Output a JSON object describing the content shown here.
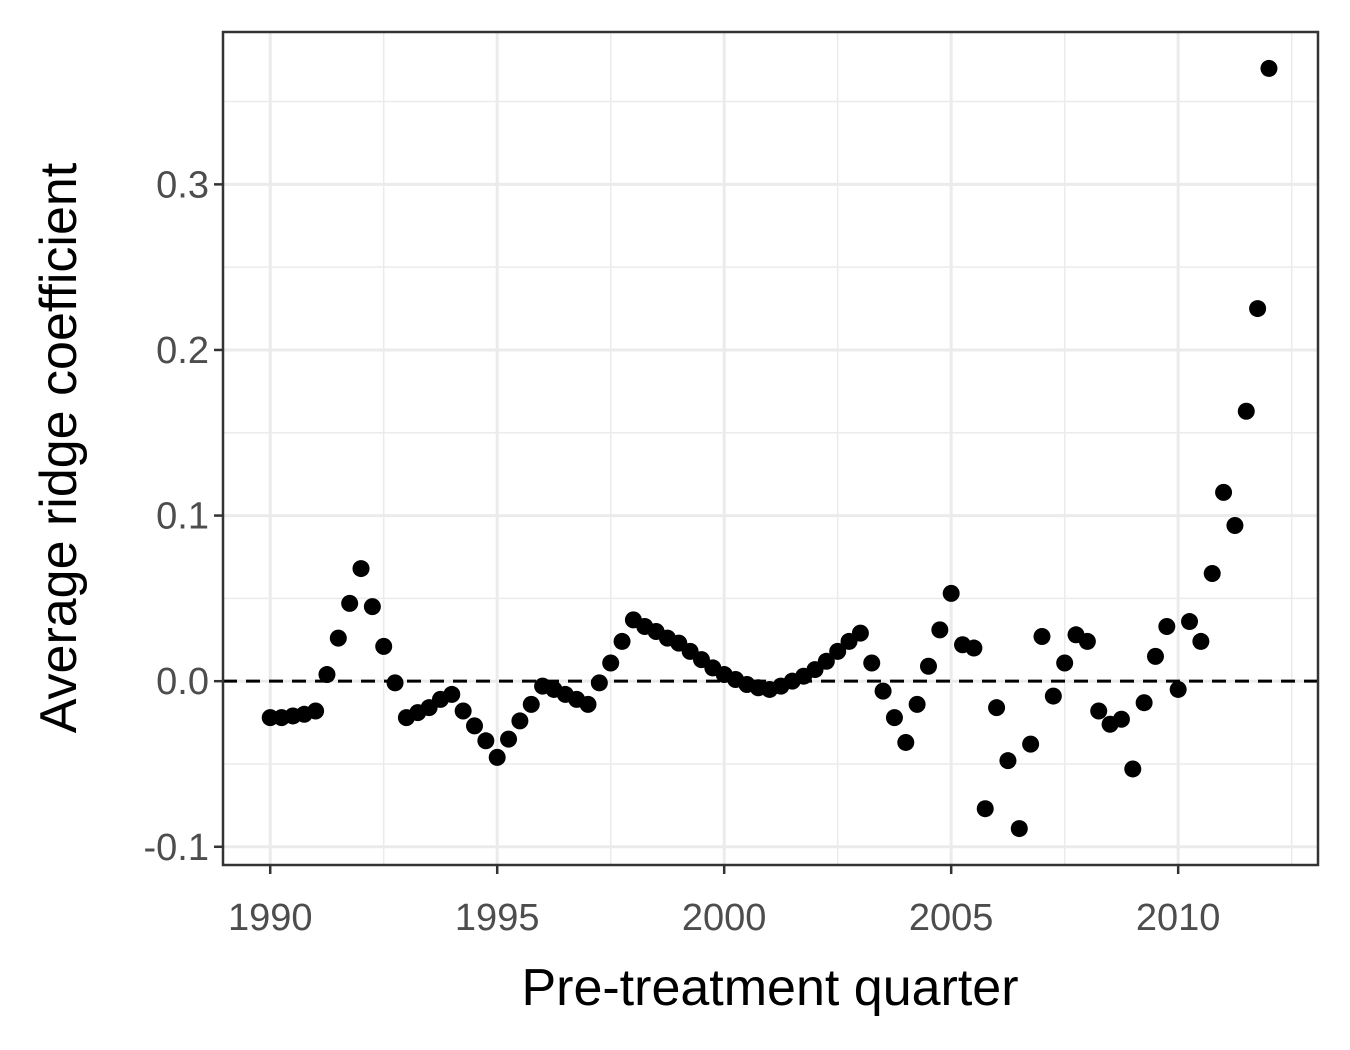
{
  "chart_data": {
    "type": "scatter",
    "xlabel": "Pre-treatment quarter",
    "ylabel": "Average ridge coefficient",
    "color": "#000000",
    "x": [
      1990,
      1990.25,
      1990.5,
      1990.75,
      1991,
      1991.25,
      1991.5,
      1991.75,
      1992,
      1992.25,
      1992.5,
      1992.75,
      1993,
      1993.25,
      1993.5,
      1993.75,
      1994,
      1994.25,
      1994.5,
      1994.75,
      1995,
      1995.25,
      1995.5,
      1995.75,
      1996,
      1996.25,
      1996.5,
      1996.75,
      1997,
      1997.25,
      1997.5,
      1997.75,
      1998,
      1998.25,
      1998.5,
      1998.75,
      1999,
      1999.25,
      1999.5,
      1999.75,
      2000,
      2000.25,
      2000.5,
      2000.75,
      2001,
      2001.25,
      2001.5,
      2001.75,
      2002,
      2002.25,
      2002.5,
      2002.75,
      2003,
      2003.25,
      2003.5,
      2003.75,
      2004,
      2004.25,
      2004.5,
      2004.75,
      2005,
      2005.25,
      2005.5,
      2005.75,
      2006,
      2006.25,
      2006.5,
      2006.75,
      2007,
      2007.25,
      2007.5,
      2007.75,
      2008,
      2008.25,
      2008.5,
      2008.75,
      2009,
      2009.25,
      2009.5,
      2009.75,
      2010,
      2010.25,
      2010.5,
      2010.75,
      2011,
      2011.25,
      2011.5,
      2011.75,
      2012
    ],
    "values": [
      -0.022,
      -0.022,
      -0.021,
      -0.02,
      -0.018,
      0.004,
      0.026,
      0.047,
      0.068,
      0.045,
      0.021,
      -0.001,
      -0.022,
      -0.019,
      -0.016,
      -0.011,
      -0.008,
      -0.018,
      -0.027,
      -0.036,
      -0.046,
      -0.035,
      -0.024,
      -0.014,
      -0.003,
      -0.005,
      -0.008,
      -0.011,
      -0.014,
      -0.001,
      0.011,
      0.024,
      0.037,
      0.033,
      0.03,
      0.026,
      0.023,
      0.018,
      0.013,
      0.008,
      0.004,
      0.001,
      -0.002,
      -0.004,
      -0.005,
      -0.003,
      0.0,
      0.003,
      0.007,
      0.012,
      0.018,
      0.024,
      0.029,
      0.011,
      -0.006,
      -0.022,
      -0.037,
      -0.014,
      0.009,
      0.031,
      0.053,
      0.022,
      0.02,
      -0.077,
      -0.016,
      -0.048,
      -0.089,
      -0.038,
      0.027,
      -0.009,
      0.011,
      0.028,
      0.024,
      -0.018,
      -0.026,
      -0.023,
      -0.053,
      -0.013,
      0.015,
      0.033,
      -0.005,
      0.036,
      0.024,
      0.065,
      0.114,
      0.094,
      0.163,
      0.225,
      0.37
    ],
    "xlim": [
      1988.96,
      2013.08
    ],
    "ylim": [
      -0.111,
      0.392
    ],
    "xticks": [
      1990,
      1995,
      2000,
      2005,
      2010
    ],
    "yticks": [
      {
        "value": -0.1,
        "label": "-0.1"
      },
      {
        "value": 0,
        "label": "0.0"
      },
      0.1,
      0.2,
      0.3
    ],
    "reference_line": {
      "y": 0,
      "style": "dashed"
    },
    "grid": true
  }
}
